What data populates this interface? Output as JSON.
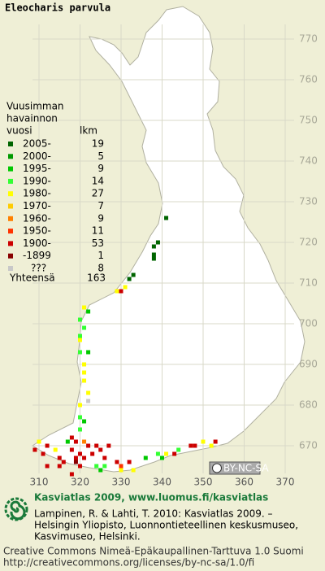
{
  "map": {
    "title": "Eleocharis parvula",
    "legend_header": [
      "Vuusimman",
      "havainnon",
      "vuosi",
      "lkm"
    ],
    "legend": [
      {
        "period": "2005-",
        "count": 19,
        "color": "#006400"
      },
      {
        "period": "2000-",
        "count": 5,
        "color": "#009900"
      },
      {
        "period": "1995-",
        "count": 9,
        "color": "#00c800"
      },
      {
        "period": "1990-",
        "count": 14,
        "color": "#33ff33"
      },
      {
        "period": "1980-",
        "count": 27,
        "color": "#ffff00"
      },
      {
        "period": "1970-",
        "count": 7,
        "color": "#ffcc00"
      },
      {
        "period": "1960-",
        "count": 9,
        "color": "#ff8000"
      },
      {
        "period": "1950-",
        "count": 11,
        "color": "#ff3300"
      },
      {
        "period": "1900-",
        "count": 53,
        "color": "#cc0000"
      },
      {
        "period": "-1899",
        "count": 1,
        "color": "#880000"
      },
      {
        "period": "???",
        "count": 8,
        "color": "#c8c8c8"
      }
    ],
    "total_label": "Yhteensä",
    "total": 163,
    "y_labels": [
      770,
      760,
      750,
      740,
      730,
      720,
      710,
      700,
      690,
      680,
      670
    ],
    "x_labels": [
      310,
      320,
      330,
      340,
      350,
      360,
      370
    ],
    "cells": [
      [
        341,
        726,
        0
      ],
      [
        338,
        719,
        0
      ],
      [
        338,
        717,
        0
      ],
      [
        338,
        716,
        0
      ],
      [
        339,
        720,
        0
      ],
      [
        333,
        712,
        0
      ],
      [
        332,
        711,
        0
      ],
      [
        331,
        709,
        4
      ],
      [
        329,
        708,
        4
      ],
      [
        330,
        708,
        8
      ],
      [
        321,
        704,
        4
      ],
      [
        322,
        703,
        2
      ],
      [
        320,
        701,
        3
      ],
      [
        321,
        699,
        3
      ],
      [
        320,
        697,
        3
      ],
      [
        320,
        696,
        4
      ],
      [
        320,
        693,
        3
      ],
      [
        322,
        693,
        2
      ],
      [
        321,
        690,
        4
      ],
      [
        321,
        688,
        4
      ],
      [
        321,
        686,
        4
      ],
      [
        322,
        683,
        4
      ],
      [
        322,
        681,
        10
      ],
      [
        320,
        680,
        4
      ],
      [
        320,
        677,
        3
      ],
      [
        321,
        676,
        2
      ],
      [
        320,
        674,
        3
      ],
      [
        318,
        672,
        8
      ],
      [
        319,
        671,
        8
      ],
      [
        310,
        671,
        4
      ],
      [
        309,
        669,
        8
      ],
      [
        312,
        670,
        8
      ],
      [
        314,
        669,
        4
      ],
      [
        315,
        667,
        8
      ],
      [
        316,
        666,
        8
      ],
      [
        318,
        669,
        8
      ],
      [
        319,
        667,
        8
      ],
      [
        320,
        668,
        8
      ],
      [
        321,
        667,
        8
      ],
      [
        322,
        670,
        8
      ],
      [
        323,
        668,
        8
      ],
      [
        324,
        670,
        8
      ],
      [
        325,
        669,
        8
      ],
      [
        326,
        667,
        8
      ],
      [
        327,
        670,
        8
      ],
      [
        326,
        665,
        3
      ],
      [
        325,
        664,
        2
      ],
      [
        324,
        665,
        3
      ],
      [
        320,
        665,
        8
      ],
      [
        319,
        666,
        9
      ],
      [
        321,
        671,
        6
      ],
      [
        317,
        671,
        2
      ],
      [
        329,
        666,
        8
      ],
      [
        330,
        664,
        4
      ],
      [
        332,
        666,
        8
      ],
      [
        333,
        664,
        4
      ],
      [
        336,
        667,
        2
      ],
      [
        339,
        668,
        3
      ],
      [
        340,
        667,
        2
      ],
      [
        341,
        668,
        4
      ],
      [
        343,
        668,
        8
      ],
      [
        344,
        669,
        3
      ],
      [
        347,
        670,
        8
      ],
      [
        348,
        670,
        8
      ],
      [
        350,
        671,
        4
      ],
      [
        352,
        670,
        4
      ],
      [
        353,
        671,
        8
      ],
      [
        330,
        665,
        7
      ],
      [
        312,
        665,
        8
      ],
      [
        315,
        665,
        8
      ],
      [
        311,
        668,
        8
      ],
      [
        318,
        663,
        8
      ]
    ],
    "badge": "BY-NC-SA",
    "footer_title": "Kasviatlas 2009, www.luomus.fi/kasviatlas",
    "citation": [
      "Lampinen, R. & Lahti, T. 2010: Kasviatlas 2009. –",
      "Helsingin Yliopisto, Luonnontieteellinen keskusmuseo,",
      "Kasvimuseo, Helsinki."
    ],
    "license": [
      "Creative Commons Nimeä-Epäkaupallinen-Tarttuva 1.0 Suomi",
      "http://creativecommons.org/licenses/by-nc-sa/1.0/fi"
    ]
  }
}
